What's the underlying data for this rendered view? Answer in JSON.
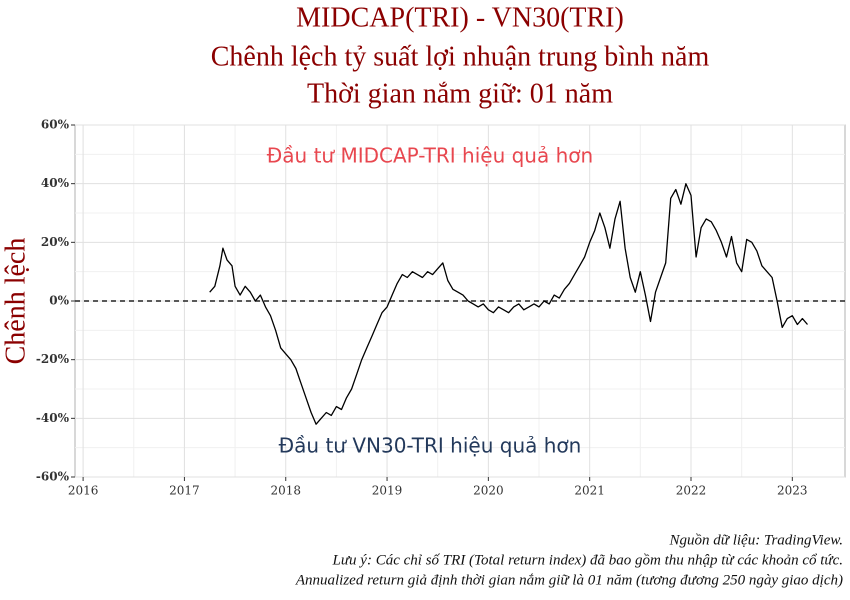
{
  "chart_data": {
    "type": "line",
    "title": [
      "MIDCAP(TRI) - VN30(TRI)",
      "Chênh lệch tỷ suất lợi nhuận trung bình năm",
      "Thời gian nắm giữ: 01 năm"
    ],
    "y_label": "Chênh lệch",
    "annotations": [
      {
        "text": "Đầu tư MIDCAP-TRI hiệu quả hơn",
        "color": "#e8474f"
      },
      {
        "text": "Đầu tư VN30-TRI hiệu quả hơn",
        "color": "#23395b"
      }
    ],
    "notes": [
      "Nguồn dữ liệu: TradingView.",
      "Lưu ý: Các chỉ số TRI (Total return index) đã bao gồm thu nhập từ các khoản cổ tức.",
      "Annualized return giả định thời gian nắm giữ là 01 năm (tương đương 250 ngày giao dịch)"
    ],
    "color": "#000000",
    "reference_line": 0,
    "grid": true,
    "xlim": [
      2015.92,
      2023.52
    ],
    "xticks": [
      2016,
      2017,
      2018,
      2019,
      2020,
      2021,
      2022,
      2023
    ],
    "ylim": [
      -60,
      60
    ],
    "yticks": [
      {
        "value": -60,
        "label": "-60%"
      },
      {
        "value": -40,
        "label": "-40%"
      },
      {
        "value": -20,
        "label": "-20%"
      },
      {
        "value": 0,
        "label": "0%"
      },
      {
        "value": 20,
        "label": "20%"
      },
      {
        "value": 40,
        "label": "40%"
      },
      {
        "value": 60,
        "label": "60%"
      }
    ],
    "x": [
      2017.25,
      2017.3,
      2017.35,
      2017.38,
      2017.42,
      2017.47,
      2017.5,
      2017.55,
      2017.6,
      2017.65,
      2017.7,
      2017.75,
      2017.8,
      2017.85,
      2017.9,
      2017.95,
      2018.0,
      2018.05,
      2018.1,
      2018.15,
      2018.2,
      2018.25,
      2018.3,
      2018.35,
      2018.4,
      2018.45,
      2018.5,
      2018.55,
      2018.6,
      2018.65,
      2018.7,
      2018.75,
      2018.8,
      2018.85,
      2018.9,
      2018.95,
      2019.0,
      2019.05,
      2019.1,
      2019.15,
      2019.2,
      2019.25,
      2019.3,
      2019.35,
      2019.4,
      2019.45,
      2019.5,
      2019.55,
      2019.6,
      2019.65,
      2019.7,
      2019.75,
      2019.8,
      2019.85,
      2019.9,
      2019.95,
      2020.0,
      2020.05,
      2020.1,
      2020.15,
      2020.2,
      2020.25,
      2020.3,
      2020.35,
      2020.4,
      2020.45,
      2020.5,
      2020.55,
      2020.6,
      2020.65,
      2020.7,
      2020.75,
      2020.8,
      2020.85,
      2020.9,
      2020.95,
      2021.0,
      2021.05,
      2021.1,
      2021.15,
      2021.2,
      2021.25,
      2021.3,
      2021.35,
      2021.4,
      2021.45,
      2021.5,
      2021.55,
      2021.6,
      2021.65,
      2021.7,
      2021.75,
      2021.8,
      2021.85,
      2021.9,
      2021.95,
      2022.0,
      2022.05,
      2022.1,
      2022.15,
      2022.2,
      2022.25,
      2022.3,
      2022.35,
      2022.4,
      2022.45,
      2022.5,
      2022.55,
      2022.6,
      2022.65,
      2022.7,
      2022.75,
      2022.8,
      2022.85,
      2022.9,
      2022.95,
      2023.0,
      2023.05,
      2023.1,
      2023.15
    ],
    "values": [
      3,
      5,
      12,
      18,
      14,
      12,
      5,
      2,
      5,
      3,
      0,
      2,
      -2,
      -5,
      -10,
      -16,
      -18,
      -20,
      -23,
      -28,
      -33,
      -38,
      -42,
      -40,
      -38,
      -39,
      -36,
      -37,
      -33,
      -30,
      -25,
      -20,
      -16,
      -12,
      -8,
      -4,
      -2,
      2,
      6,
      9,
      8,
      10,
      9,
      8,
      10,
      9,
      11,
      13,
      7,
      4,
      3,
      2,
      0,
      -1,
      -2,
      -1,
      -3,
      -4,
      -2,
      -3,
      -4,
      -2,
      -1,
      -3,
      -2,
      -1,
      -2,
      0,
      -1,
      2,
      1,
      4,
      6,
      9,
      12,
      15,
      20,
      24,
      30,
      25,
      18,
      28,
      34,
      18,
      8,
      3,
      10,
      2,
      -7,
      3,
      8,
      13,
      35,
      38,
      33,
      40,
      36,
      15,
      25,
      28,
      27,
      24,
      20,
      15,
      22,
      13,
      10,
      21,
      20,
      17,
      12,
      10,
      8,
      0,
      -9,
      -6,
      -5,
      -8,
      -6,
      -8
    ]
  }
}
